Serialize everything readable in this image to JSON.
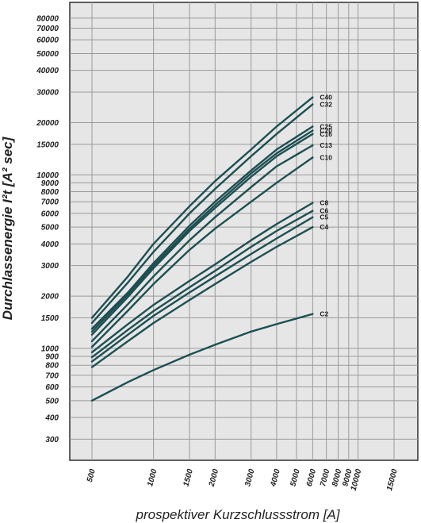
{
  "chart_data": {
    "type": "line",
    "xlabel": "prospektiver Kurzschlussstrom [A]",
    "ylabel": "Durchlassenergie I²t [A² sec]",
    "x_scale": "log",
    "y_scale": "log",
    "xlim": [
      500,
      20000
    ],
    "ylim": [
      230,
      100000
    ],
    "grid": true,
    "x_ticks": [
      500,
      1000,
      1500,
      2000,
      3000,
      4000,
      5000,
      6000,
      7000,
      8000,
      9000,
      10000,
      15000
    ],
    "x_tick_labels": [
      "500",
      "1000",
      "1500",
      "2000",
      "3000",
      "4000",
      "5000",
      "6000",
      "7000",
      "8000",
      "9000",
      "10000",
      "15000"
    ],
    "y_ticks": [
      300,
      400,
      500,
      600,
      700,
      800,
      900,
      1000,
      1500,
      2000,
      3000,
      4000,
      5000,
      6000,
      7000,
      8000,
      9000,
      10000,
      15000,
      20000,
      30000,
      40000,
      50000,
      60000,
      70000,
      80000
    ],
    "y_tick_labels": [
      "300",
      "400",
      "500",
      "600",
      "700",
      "800",
      "900",
      "1000",
      "1500",
      "2000",
      "3000",
      "4000",
      "5000",
      "6000",
      "7000",
      "8000",
      "9000",
      "10000",
      "15000",
      "20000",
      "30000",
      "40000",
      "50000",
      "60000",
      "70000",
      "80000"
    ],
    "line_color": "#1d4f52",
    "x": [
      500,
      750,
      1000,
      1500,
      2000,
      3000,
      4000,
      6000
    ],
    "series": [
      {
        "name": "C40",
        "values": [
          1500,
          2600,
          4000,
          6600,
          9200,
          14000,
          19000,
          28000
        ]
      },
      {
        "name": "C32",
        "values": [
          1400,
          2400,
          3600,
          6000,
          8300,
          12800,
          17200,
          25500
        ]
      },
      {
        "name": "C25",
        "values": [
          1300,
          2100,
          3100,
          5100,
          7000,
          10600,
          14000,
          19000
        ]
      },
      {
        "name": "C20",
        "values": [
          1250,
          2050,
          3000,
          4900,
          6700,
          10200,
          13300,
          18000
        ]
      },
      {
        "name": "C16",
        "values": [
          1200,
          1980,
          2900,
          4750,
          6450,
          9750,
          12800,
          17200
        ]
      },
      {
        "name": "C13",
        "values": [
          1100,
          1800,
          2600,
          4200,
          5700,
          8500,
          11200,
          14800
        ]
      },
      {
        "name": "C10",
        "values": [
          1020,
          1650,
          2350,
          3700,
          4900,
          7000,
          9000,
          12600
        ]
      },
      {
        "name": "C8",
        "values": [
          950,
          1380,
          1780,
          2450,
          3050,
          4200,
          5200,
          6900
        ]
      },
      {
        "name": "C6",
        "values": [
          890,
          1280,
          1640,
          2250,
          2800,
          3850,
          4750,
          6200
        ]
      },
      {
        "name": "C5",
        "values": [
          840,
          1200,
          1540,
          2100,
          2600,
          3500,
          4300,
          5700
        ]
      },
      {
        "name": "C4",
        "values": [
          780,
          1100,
          1400,
          1900,
          2350,
          3150,
          3850,
          5000
        ]
      },
      {
        "name": "C2",
        "values": [
          500,
          640,
          750,
          920,
          1050,
          1250,
          1380,
          1580
        ]
      }
    ]
  }
}
